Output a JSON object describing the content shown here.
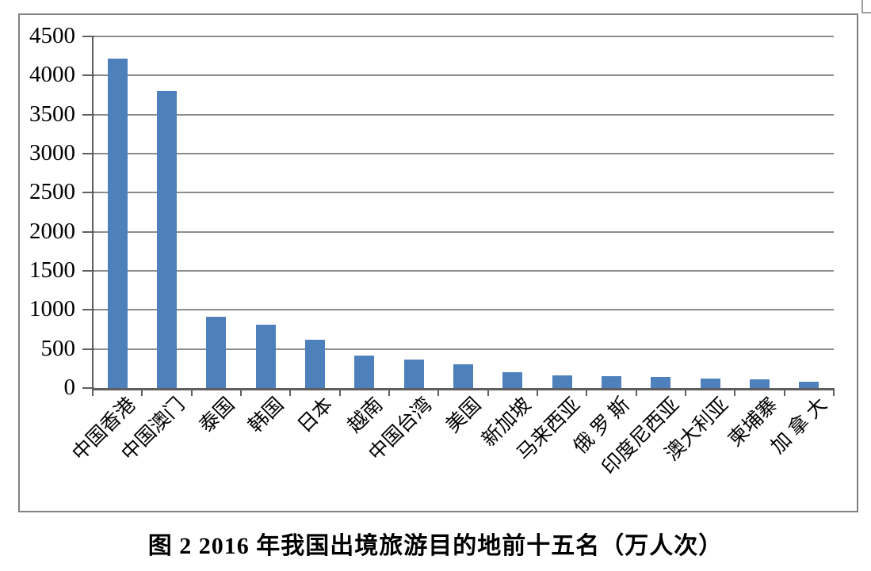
{
  "figure": {
    "caption": "图 2 2016 年我国出境旅游目的地前十五名（万人次）"
  },
  "chart_data": {
    "type": "bar",
    "title": "",
    "xlabel": "",
    "ylabel": "",
    "value_unit": "万人次",
    "categories": [
      "中国香港",
      "中国澳门",
      "泰国",
      "韩国",
      "日本",
      "越南",
      "中国台湾",
      "美国",
      "新加坡",
      "马来西亚",
      "俄 罗 斯",
      "印度尼西亚",
      "澳大利亚",
      "柬埔寨",
      "加 拿 大"
    ],
    "values": [
      4220,
      3800,
      910,
      810,
      620,
      420,
      360,
      300,
      200,
      160,
      150,
      140,
      125,
      110,
      80
    ],
    "ylim": [
      0,
      4500
    ],
    "ytick_step": 500,
    "y_ticks": [
      0,
      500,
      1000,
      1500,
      2000,
      2500,
      3000,
      3500,
      4000,
      4500
    ],
    "grid": true,
    "legend": null,
    "bar_color": "#4E80BC",
    "gridline_color": "#8C8C8C",
    "axis_color": "#5F5F5F",
    "frame_color": "#808080"
  }
}
